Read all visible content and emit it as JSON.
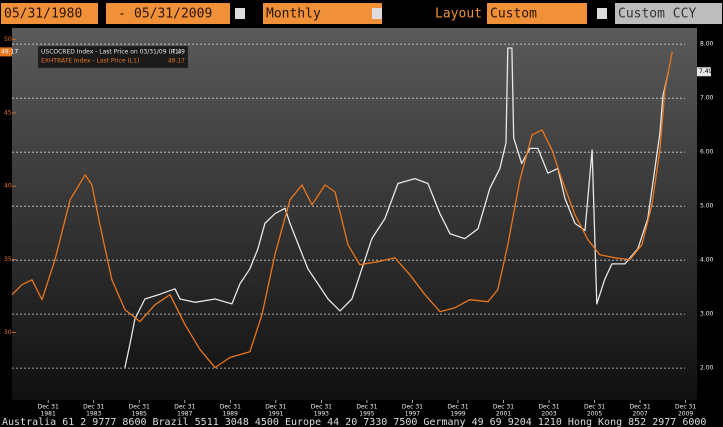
{
  "toolbar": {
    "start_date": "05/31/1980",
    "separator": "-",
    "end_date": "05/31/2009",
    "period": "Monthly",
    "layout_label": "Layout",
    "layout": "Custom",
    "currency": "Custom CCY"
  },
  "footer": "Australia 61 2 9777 8600 Brazil 5511 3048 4500 Europe 44 20 7330 7500 Germany 49 69 9204 1210 Hong Kong 852 2977 6000",
  "chart_data": {
    "type": "line",
    "xlim": [
      1980.41,
      2010.5
    ],
    "xticks": [
      {
        "value": 1982,
        "label": "Dec 31",
        "sublabel": "1981"
      },
      {
        "value": 1984,
        "label": "Dec 31",
        "sublabel": "1983"
      },
      {
        "value": 1986,
        "label": "Dec 31",
        "sublabel": "1985"
      },
      {
        "value": 1988,
        "label": "Dec 31",
        "sublabel": "1987"
      },
      {
        "value": 1990,
        "label": "Dec 31",
        "sublabel": "1989"
      },
      {
        "value": 1992,
        "label": "Dec 31",
        "sublabel": "1991"
      },
      {
        "value": 1994,
        "label": "Dec 31",
        "sublabel": "1993"
      },
      {
        "value": 1996,
        "label": "Dec 31",
        "sublabel": "1995"
      },
      {
        "value": 1998,
        "label": "Dec 31",
        "sublabel": "1997"
      },
      {
        "value": 2000,
        "label": "Dec 31",
        "sublabel": "1999"
      },
      {
        "value": 2002,
        "label": "Dec 31",
        "sublabel": "2001"
      },
      {
        "value": 2004,
        "label": "Dec 31",
        "sublabel": "2003"
      },
      {
        "value": 2006,
        "label": "Dec 31",
        "sublabel": "2005"
      },
      {
        "value": 2008,
        "label": "Dec 31",
        "sublabel": "2007"
      },
      {
        "value": 2010,
        "label": "Dec 31",
        "sublabel": "2009"
      }
    ],
    "ylim": [
      25.4,
      50.8
    ],
    "yticks": [
      30,
      35,
      40,
      45,
      50
    ],
    "y2lim": [
      1.41,
      8.3
    ],
    "y2ticks": [
      {
        "value": 2,
        "label": "2.00"
      },
      {
        "value": 3,
        "label": "3.00"
      },
      {
        "value": 4,
        "label": "4.00"
      },
      {
        "value": 5,
        "label": "5.00"
      },
      {
        "value": 6,
        "label": "6.00"
      },
      {
        "value": 7,
        "label": "7.00"
      },
      {
        "value": 8,
        "label": "8.00"
      }
    ],
    "grid": true,
    "legend": "top-left",
    "series": [
      {
        "name": "USCOCRED Index - Last Price on 03/31/09 (R1)",
        "color": "#e6e6e6",
        "axis": "y2",
        "x": [
          1985.37,
          1985.59,
          1985.81,
          1986.25,
          1986.91,
          1987.57,
          1987.79,
          1988.45,
          1989.33,
          1990.07,
          1990.42,
          1990.86,
          1991.21,
          1991.52,
          1991.96,
          1992.4,
          1992.62,
          1993.06,
          1993.41,
          1993.85,
          1994.29,
          1994.82,
          1995.34,
          1995.78,
          1996.22,
          1996.79,
          1997.36,
          1998.11,
          1998.68,
          1999.21,
          1999.65,
          2000.3,
          2000.88,
          2001.4,
          2001.84,
          2002.11,
          2002.19,
          2002.37,
          2002.45,
          2002.8,
          2003.16,
          2003.51,
          2003.95,
          2004.39,
          2004.7,
          2005.14,
          2005.58,
          2005.89,
          2006.1,
          2006.45,
          2006.76,
          2007.33,
          2007.9,
          2008.34,
          2008.65,
          2008.87,
          2009.0,
          2009.25
        ],
        "values": [
          2.01,
          2.44,
          2.91,
          3.28,
          3.37,
          3.47,
          3.28,
          3.22,
          3.28,
          3.19,
          3.56,
          3.84,
          4.21,
          4.68,
          4.86,
          4.96,
          4.68,
          4.21,
          3.84,
          3.56,
          3.28,
          3.06,
          3.28,
          3.84,
          4.4,
          4.77,
          5.42,
          5.51,
          5.42,
          4.86,
          4.49,
          4.4,
          4.58,
          5.33,
          5.7,
          6.17,
          7.93,
          7.93,
          6.26,
          5.79,
          6.07,
          6.07,
          5.61,
          5.7,
          5.14,
          4.68,
          4.55,
          6.04,
          3.19,
          3.65,
          3.93,
          3.93,
          4.21,
          4.77,
          5.7,
          6.35,
          7.04,
          7.49
        ]
      },
      {
        "name": "EXHTRATE Index - Last Price (L1)",
        "color": "#e8761e",
        "axis": "y",
        "x": [
          1980.41,
          1980.85,
          1981.29,
          1981.73,
          1982.3,
          1982.96,
          1983.62,
          1983.92,
          1984.27,
          1984.8,
          1985.37,
          1986.03,
          1986.69,
          1987.35,
          1988.01,
          1988.67,
          1989.33,
          1989.98,
          1990.86,
          1991.39,
          1991.96,
          1992.62,
          1993.15,
          1993.59,
          1994.16,
          1994.6,
          1995.17,
          1995.69,
          1996.48,
          1997.23,
          1997.89,
          1998.55,
          1999.21,
          1999.87,
          2000.52,
          2001.32,
          2001.75,
          2002.19,
          2002.72,
          2003.25,
          2003.69,
          2004.13,
          2004.57,
          2005.14,
          2005.71,
          2006.23,
          2006.89,
          2007.55,
          2008.08,
          2008.52,
          2008.87,
          2009.09,
          2009.41
        ],
        "values": [
          32.59,
          33.27,
          33.61,
          32.25,
          34.98,
          39.07,
          40.77,
          40.09,
          37.36,
          33.61,
          31.57,
          30.75,
          31.91,
          32.59,
          30.55,
          28.84,
          27.61,
          28.3,
          28.7,
          31.23,
          35.32,
          39.07,
          40.09,
          38.73,
          40.09,
          39.61,
          36.0,
          34.64,
          34.84,
          35.11,
          33.95,
          32.59,
          31.43,
          31.7,
          32.25,
          32.11,
          32.93,
          36.0,
          40.43,
          43.5,
          43.84,
          42.48,
          40.43,
          38.04,
          36.34,
          35.32,
          35.11,
          34.98,
          36.0,
          38.73,
          42.48,
          46.57,
          49.17
        ]
      }
    ]
  }
}
